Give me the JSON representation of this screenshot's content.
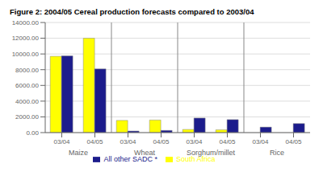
{
  "chart_data": {
    "type": "bar",
    "title": "Figure 2: 2004/05 Cereal production forecasts compared to 2003/04",
    "categories": [
      "03/04",
      "04/05",
      "03/04",
      "04/05",
      "03/04",
      "04/05",
      "03/04",
      "04/05"
    ],
    "groups": [
      "Maize",
      "Wheat",
      "Sorghum/millet",
      "Rice"
    ],
    "series": [
      {
        "name": "South Africa",
        "color": "#FFFF00",
        "values": [
          9700,
          12000,
          1550,
          1600,
          400,
          350,
          0,
          0
        ]
      },
      {
        "name": "All other SADC *",
        "color": "#1C1C8C",
        "values": [
          9750,
          8100,
          200,
          280,
          1850,
          1650,
          700,
          1150
        ]
      }
    ],
    "ylim": [
      0,
      14000
    ],
    "yticks": [
      {
        "value": 0,
        "label": "0.00"
      },
      {
        "value": 2000,
        "label": "2000.00"
      },
      {
        "value": 4000,
        "label": "4000.00"
      },
      {
        "value": 6000,
        "label": "6000.00"
      },
      {
        "value": 8000,
        "label": "8000.00"
      },
      {
        "value": 10000,
        "label": "10000.00"
      },
      {
        "value": 12000,
        "label": "12000.00"
      },
      {
        "value": 14000,
        "label": "14000.00"
      }
    ],
    "grid": true,
    "legend": "bottom"
  }
}
